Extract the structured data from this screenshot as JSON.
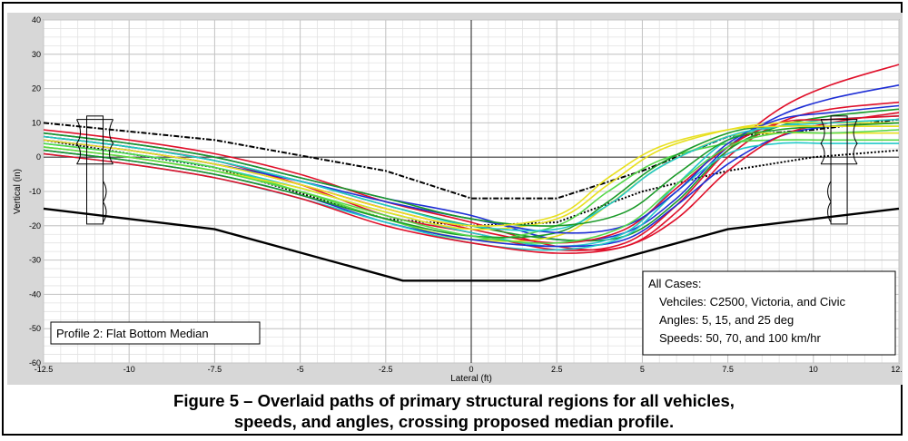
{
  "chart_data": {
    "type": "line",
    "xlabel": "Lateral (ft)",
    "ylabel": "Vertical (in)",
    "xlim": [
      -12.5,
      12.5
    ],
    "ylim": [
      -60,
      40
    ],
    "xticks": [
      -12.5,
      -10,
      -7.5,
      -5,
      -2.5,
      0,
      2.5,
      5,
      7.5,
      10,
      12.5
    ],
    "xtick_labels": [
      "-12.5",
      "-10",
      "-7.5",
      "-5",
      "-2.5",
      "0",
      "2.5",
      "5",
      "7.5",
      "10",
      "12.5"
    ],
    "yticks": [
      -60,
      -50,
      -40,
      -30,
      -20,
      -10,
      0,
      10,
      20,
      30,
      40
    ],
    "ytick_labels": [
      "-60",
      "-50",
      "-40",
      "-30",
      "-20",
      "-10",
      "0",
      "10",
      "20",
      "30",
      "40"
    ],
    "grid": true,
    "profile_label": "Profile 2: Flat Bottom Median",
    "legend_lines": [
      "All Cases:",
      "Vehciles: C2500, Victoria, and Civic",
      "Angles:  5, 15, and 25 deg",
      "Speeds: 50, 70, and 100 km/hr"
    ],
    "ground_profile": {
      "x": [
        -12.5,
        -7.5,
        -2,
        2,
        7.5,
        12.5
      ],
      "y": [
        -15,
        -21,
        -36,
        -36,
        -21,
        -15
      ]
    },
    "envelope_upper": {
      "x": [
        -12.5,
        -7.5,
        -2.5,
        0,
        2.5,
        5,
        7.5,
        10,
        12.5
      ],
      "y": [
        10,
        5,
        -4,
        -12,
        -12,
        -4,
        6,
        8,
        11
      ]
    },
    "envelope_lower": {
      "x": [
        -12.5,
        -7.5,
        -2.5,
        0,
        2.5,
        5,
        7.5,
        10,
        12.5
      ],
      "y": [
        5,
        -3,
        -18,
        -20,
        -19,
        -10,
        -4,
        0,
        2
      ]
    },
    "series": [
      {
        "color": "#e0102a",
        "values": [
          [
            -12.5,
            6
          ],
          [
            -10,
            3
          ],
          [
            -7.5,
            -1
          ],
          [
            -5,
            -8
          ],
          [
            -2.5,
            -17
          ],
          [
            0,
            -22
          ],
          [
            2.5,
            -27
          ],
          [
            4.5,
            -25
          ],
          [
            6,
            -14
          ],
          [
            7.5,
            2
          ],
          [
            9,
            14
          ],
          [
            10.5,
            21
          ],
          [
            12.5,
            27
          ]
        ]
      },
      {
        "color": "#1f2fd6",
        "values": [
          [
            -12.5,
            7
          ],
          [
            -10,
            4
          ],
          [
            -7.5,
            0
          ],
          [
            -5,
            -6
          ],
          [
            -2.5,
            -12
          ],
          [
            0,
            -17
          ],
          [
            2.5,
            -24
          ],
          [
            4.5,
            -22
          ],
          [
            6,
            -12
          ],
          [
            7.5,
            3
          ],
          [
            9,
            12
          ],
          [
            10.5,
            17
          ],
          [
            12.5,
            21
          ]
        ]
      },
      {
        "color": "#e0102a",
        "values": [
          [
            -12.5,
            8
          ],
          [
            -10,
            5
          ],
          [
            -7.5,
            1
          ],
          [
            -5,
            -5
          ],
          [
            -2.5,
            -13
          ],
          [
            0,
            -19
          ],
          [
            2.5,
            -26
          ],
          [
            4.5,
            -26
          ],
          [
            6,
            -16
          ],
          [
            7.5,
            0
          ],
          [
            9,
            10
          ],
          [
            10.5,
            14
          ],
          [
            12.5,
            16
          ]
        ]
      },
      {
        "color": "#1a9a28",
        "values": [
          [
            -12.5,
            6
          ],
          [
            -10,
            3
          ],
          [
            -7.5,
            -1
          ],
          [
            -5,
            -7
          ],
          [
            -2.5,
            -14
          ],
          [
            0,
            -20
          ],
          [
            2.5,
            -24
          ],
          [
            4.5,
            -23
          ],
          [
            6,
            -13
          ],
          [
            7.5,
            2
          ],
          [
            9,
            9
          ],
          [
            10.5,
            12
          ],
          [
            12.5,
            14
          ]
        ]
      },
      {
        "color": "#23c8c8",
        "values": [
          [
            -12.5,
            4
          ],
          [
            -10,
            1
          ],
          [
            -7.5,
            -3
          ],
          [
            -5,
            -9
          ],
          [
            -2.5,
            -16
          ],
          [
            0,
            -22
          ],
          [
            2.5,
            -26
          ],
          [
            4.5,
            -22
          ],
          [
            6,
            -8
          ],
          [
            7.5,
            5
          ],
          [
            9,
            9
          ],
          [
            10.5,
            11
          ],
          [
            12.5,
            12
          ]
        ]
      },
      {
        "color": "#e8e020",
        "values": [
          [
            -12.5,
            3
          ],
          [
            -10,
            0
          ],
          [
            -7.5,
            -4
          ],
          [
            -5,
            -10
          ],
          [
            -2.5,
            -18
          ],
          [
            0,
            -24
          ],
          [
            2.5,
            -23
          ],
          [
            4,
            -14
          ],
          [
            5.5,
            -3
          ],
          [
            7.5,
            6
          ],
          [
            9,
            7
          ],
          [
            10.5,
            7
          ],
          [
            12.5,
            7
          ]
        ]
      },
      {
        "color": "#55d84a",
        "values": [
          [
            -12.5,
            4
          ],
          [
            -10,
            1
          ],
          [
            -7.5,
            -3
          ],
          [
            -5,
            -10
          ],
          [
            -2.5,
            -18
          ],
          [
            0,
            -24
          ],
          [
            2.5,
            -20
          ],
          [
            4,
            -10
          ],
          [
            5.5,
            -1
          ],
          [
            7.5,
            4
          ],
          [
            9,
            5
          ],
          [
            10.5,
            5
          ],
          [
            12.5,
            5
          ]
        ]
      },
      {
        "color": "#e0102a",
        "values": [
          [
            -12.5,
            5
          ],
          [
            -10,
            2
          ],
          [
            -7.5,
            -2
          ],
          [
            -5,
            -8
          ],
          [
            -2.5,
            -15
          ],
          [
            0,
            -21
          ],
          [
            2.5,
            -25
          ],
          [
            4.5,
            -21
          ],
          [
            6,
            -9
          ],
          [
            7.5,
            3
          ],
          [
            9,
            10
          ],
          [
            10.5,
            11
          ],
          [
            12.5,
            12
          ]
        ]
      },
      {
        "color": "#1f2fd6",
        "values": [
          [
            -12.5,
            2
          ],
          [
            -10,
            -1
          ],
          [
            -7.5,
            -5
          ],
          [
            -5,
            -11
          ],
          [
            -2.5,
            -19
          ],
          [
            0,
            -24
          ],
          [
            2.5,
            -26
          ],
          [
            4.5,
            -24
          ],
          [
            6,
            -14
          ],
          [
            7.5,
            -2
          ],
          [
            9,
            6
          ],
          [
            10.5,
            9
          ],
          [
            12.5,
            10
          ]
        ]
      },
      {
        "color": "#23c8c8",
        "values": [
          [
            -12.5,
            1
          ],
          [
            -10,
            -2
          ],
          [
            -7.5,
            -6
          ],
          [
            -5,
            -12
          ],
          [
            -2.5,
            -19
          ],
          [
            0,
            -25
          ],
          [
            2.5,
            -27
          ],
          [
            4.5,
            -23
          ],
          [
            6,
            -10
          ],
          [
            7.5,
            1
          ],
          [
            9,
            4
          ],
          [
            10.5,
            4
          ],
          [
            12.5,
            4
          ]
        ]
      },
      {
        "color": "#1a9a28",
        "values": [
          [
            -12.5,
            2
          ],
          [
            -10,
            -1
          ],
          [
            -7.5,
            -5
          ],
          [
            -5,
            -11
          ],
          [
            -2.5,
            -18
          ],
          [
            0,
            -23
          ],
          [
            2.5,
            -22
          ],
          [
            4,
            -13
          ],
          [
            5.5,
            -2
          ],
          [
            7.5,
            7
          ],
          [
            9,
            9
          ],
          [
            10.5,
            9
          ],
          [
            12.5,
            9
          ]
        ]
      },
      {
        "color": "#e8e020",
        "values": [
          [
            -12.5,
            3
          ],
          [
            -10,
            0
          ],
          [
            -7.5,
            -4
          ],
          [
            -5,
            -9
          ],
          [
            -2.5,
            -16
          ],
          [
            0,
            -21
          ],
          [
            2.5,
            -18
          ],
          [
            4,
            -8
          ],
          [
            5.5,
            2
          ],
          [
            7.5,
            8
          ],
          [
            9,
            10
          ],
          [
            10.5,
            10
          ],
          [
            12.5,
            10
          ]
        ]
      },
      {
        "color": "#e0102a",
        "values": [
          [
            -12.5,
            1
          ],
          [
            -10,
            -2
          ],
          [
            -7.5,
            -6
          ],
          [
            -5,
            -12
          ],
          [
            -2.5,
            -20
          ],
          [
            0,
            -25
          ],
          [
            2.5,
            -28
          ],
          [
            4.5,
            -26
          ],
          [
            6,
            -18
          ],
          [
            7.5,
            -4
          ],
          [
            9,
            6
          ],
          [
            10.5,
            10
          ],
          [
            12.5,
            13
          ]
        ]
      },
      {
        "color": "#1f2fd6",
        "values": [
          [
            -12.5,
            5
          ],
          [
            -10,
            2
          ],
          [
            -7.5,
            -2
          ],
          [
            -5,
            -7
          ],
          [
            -2.5,
            -13
          ],
          [
            0,
            -18
          ],
          [
            2.5,
            -22
          ],
          [
            4.5,
            -20
          ],
          [
            6,
            -10
          ],
          [
            7.5,
            4
          ],
          [
            9,
            11
          ],
          [
            10.5,
            13
          ],
          [
            12.5,
            15
          ]
        ]
      },
      {
        "color": "#23c8c8",
        "values": [
          [
            -12.5,
            6
          ],
          [
            -10,
            3
          ],
          [
            -7.5,
            -1
          ],
          [
            -5,
            -7
          ],
          [
            -2.5,
            -14
          ],
          [
            0,
            -20
          ],
          [
            2.5,
            -21
          ],
          [
            4,
            -14
          ],
          [
            5.5,
            -3
          ],
          [
            7.5,
            6
          ],
          [
            9,
            9
          ],
          [
            10.5,
            10
          ],
          [
            12.5,
            11
          ]
        ]
      },
      {
        "color": "#55d84a",
        "values": [
          [
            -12.5,
            3
          ],
          [
            -10,
            0
          ],
          [
            -7.5,
            -4
          ],
          [
            -5,
            -10
          ],
          [
            -2.5,
            -17
          ],
          [
            0,
            -23
          ],
          [
            2.5,
            -25
          ],
          [
            4.5,
            -20
          ],
          [
            6,
            -8
          ],
          [
            7.5,
            3
          ],
          [
            9,
            7
          ],
          [
            10.5,
            7
          ],
          [
            12.5,
            8
          ]
        ]
      },
      {
        "color": "#1a9a28",
        "values": [
          [
            -12.5,
            7
          ],
          [
            -10,
            4
          ],
          [
            -7.5,
            0
          ],
          [
            -5,
            -6
          ],
          [
            -2.5,
            -12
          ],
          [
            0,
            -18
          ],
          [
            2.5,
            -20
          ],
          [
            4.5,
            -16
          ],
          [
            6,
            -5
          ],
          [
            7.5,
            5
          ],
          [
            9,
            8
          ],
          [
            10.5,
            9
          ],
          [
            12.5,
            10
          ]
        ]
      },
      {
        "color": "#e8e020",
        "values": [
          [
            -12.5,
            5
          ],
          [
            -10,
            2
          ],
          [
            -7.5,
            -2
          ],
          [
            -5,
            -8
          ],
          [
            -2.5,
            -15
          ],
          [
            0,
            -20
          ],
          [
            2.5,
            -17
          ],
          [
            4,
            -6
          ],
          [
            5.5,
            3
          ],
          [
            7.5,
            8
          ],
          [
            9,
            9
          ],
          [
            10.5,
            9
          ],
          [
            12.5,
            9
          ]
        ]
      }
    ]
  },
  "caption": {
    "line1": "Figure 5 – Overlaid paths of primary structural regions for all vehicles,",
    "line2": "speeds, and angles, crossing proposed median profile."
  }
}
